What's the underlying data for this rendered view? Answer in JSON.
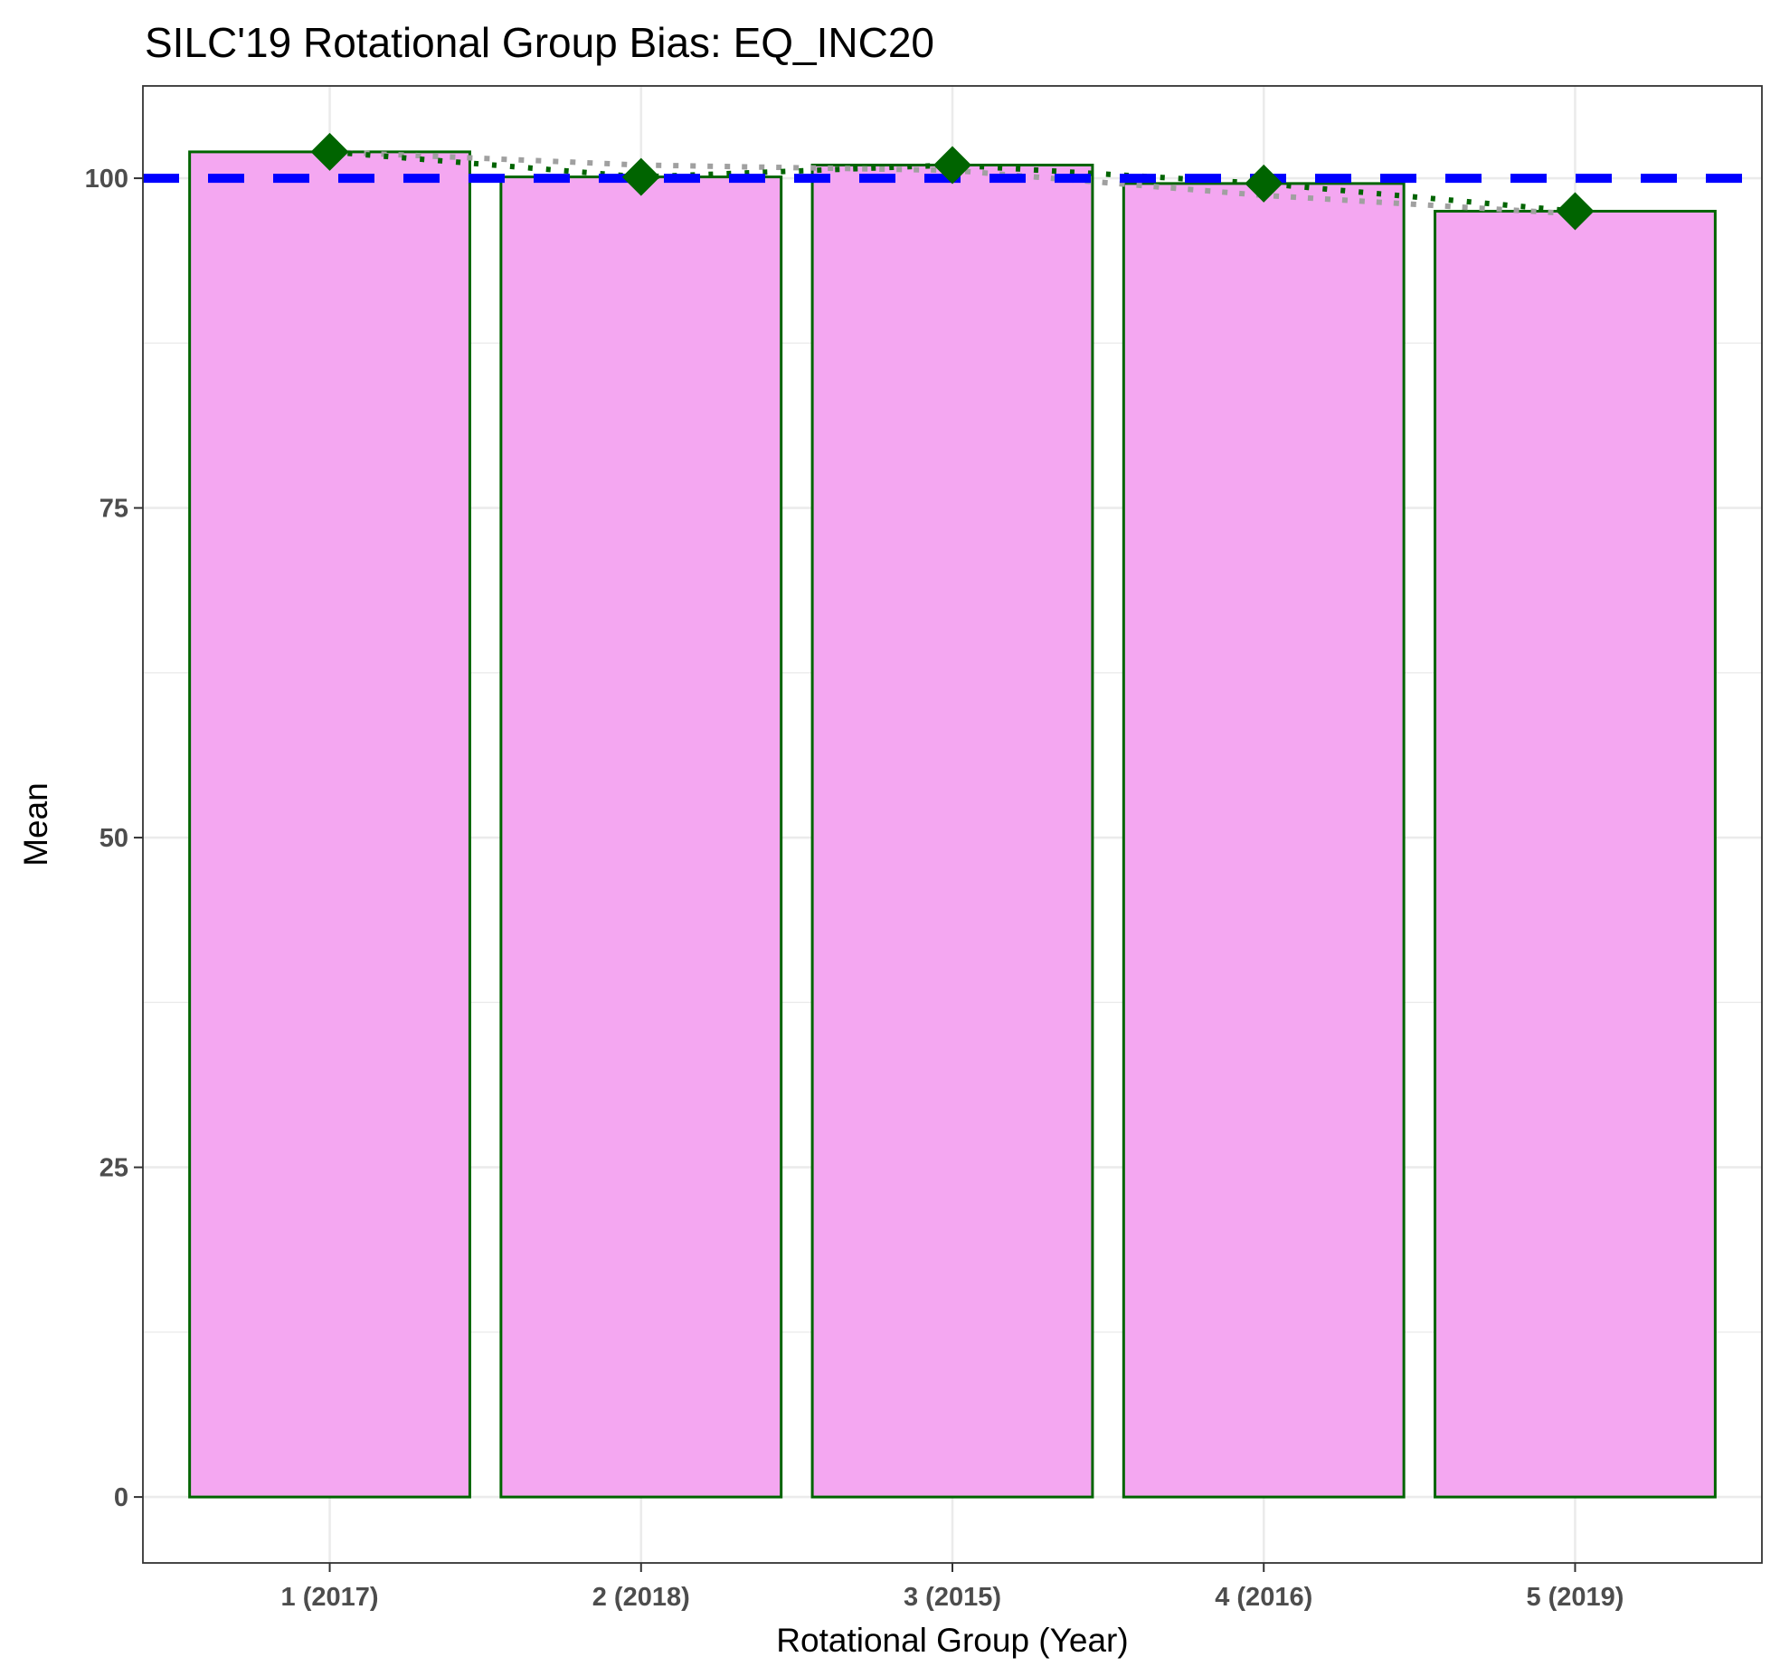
{
  "chart_data": {
    "type": "bar",
    "title": "SILC'19 Rotational Group Bias: EQ_INC20",
    "xlabel": "Rotational Group (Year)",
    "ylabel": "Mean",
    "categories": [
      "1 (2017)",
      "2 (2018)",
      "3 (2015)",
      "4 (2016)",
      "5 (2019)"
    ],
    "values": [
      102.0,
      100.1,
      101.0,
      99.6,
      97.5
    ],
    "point_values": [
      102.0,
      100.1,
      101.0,
      99.6,
      97.5
    ],
    "trend_values": [
      102.0,
      101.0,
      100.6,
      98.7,
      97.3
    ],
    "reference_line": 100,
    "ylim": [
      -5,
      107
    ],
    "yticks": [
      0,
      25,
      50,
      75,
      100
    ],
    "ytick_labels": [
      "0",
      "25",
      "50",
      "75",
      "100"
    ],
    "grid": true,
    "colors": {
      "bar_fill": "#f4a7f1",
      "bar_stroke": "#006400",
      "point": "#006400",
      "point_line": "#006400",
      "trend_line": "#a0a0a0",
      "reference_line": "#0000ff",
      "grid": "#ebebeb",
      "panel_border": "#333333"
    }
  }
}
